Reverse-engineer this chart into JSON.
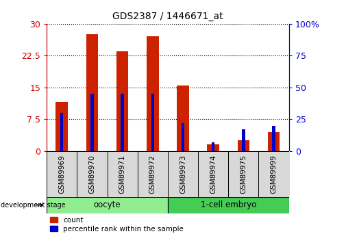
{
  "title": "GDS2387 / 1446671_at",
  "samples": [
    "GSM89969",
    "GSM89970",
    "GSM89971",
    "GSM89972",
    "GSM89973",
    "GSM89974",
    "GSM89975",
    "GSM89999"
  ],
  "count_values": [
    11.5,
    27.5,
    23.5,
    27.0,
    15.5,
    1.5,
    2.5,
    4.5
  ],
  "percentile_values": [
    30.0,
    45.0,
    45.0,
    45.0,
    22.0,
    7.0,
    17.0,
    20.0
  ],
  "groups": [
    {
      "label": "oocyte",
      "indices": [
        0,
        1,
        2,
        3
      ],
      "color": "#90EE90"
    },
    {
      "label": "1-cell embryo",
      "indices": [
        4,
        5,
        6,
        7
      ],
      "color": "#44CC55"
    }
  ],
  "left_ylim": [
    0,
    30
  ],
  "right_ylim": [
    0,
    100
  ],
  "left_yticks": [
    0,
    7.5,
    15,
    22.5,
    30
  ],
  "right_yticks": [
    0,
    25,
    50,
    75,
    100
  ],
  "left_yticklabels": [
    "0",
    "7.5",
    "15",
    "22.5",
    "30"
  ],
  "right_yticklabels": [
    "0",
    "25",
    "50",
    "75",
    "100%"
  ],
  "left_axis_color": "#CC0000",
  "right_axis_color": "#0000CC",
  "bar_color_red": "#CC2200",
  "bar_color_blue": "#0000CC",
  "grid_color": "#000000",
  "background_fig": "#FFFFFF",
  "development_stage_label": "development stage",
  "legend_count_label": "count",
  "legend_percentile_label": "percentile rank within the sample",
  "red_bar_width": 0.4,
  "blue_bar_width": 0.1
}
